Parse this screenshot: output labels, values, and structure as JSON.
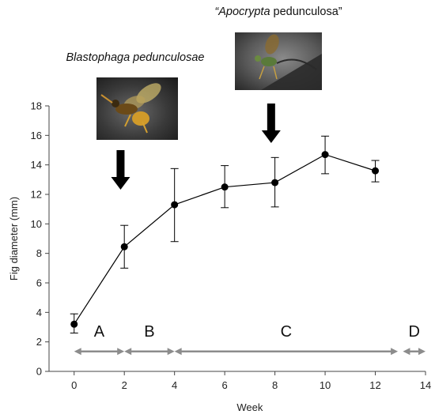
{
  "chart_data": {
    "type": "line",
    "xlabel": "Week",
    "ylabel": "Fig diameter (mm)",
    "xlim": [
      -1,
      14
    ],
    "ylim": [
      0,
      18
    ],
    "xticks": [
      0,
      2,
      4,
      6,
      8,
      10,
      12,
      14
    ],
    "yticks": [
      0,
      2,
      4,
      6,
      8,
      10,
      12,
      14,
      16,
      18
    ],
    "grid": false,
    "series": [
      {
        "points": [
          {
            "x": 0,
            "y": 3.2,
            "low": 2.6,
            "high": 3.9
          },
          {
            "x": 2,
            "y": 8.45,
            "low": 7.0,
            "high": 9.9
          },
          {
            "x": 4,
            "y": 11.3,
            "low": 8.8,
            "high": 13.75
          },
          {
            "x": 6,
            "y": 12.5,
            "low": 11.1,
            "high": 13.95
          },
          {
            "x": 8,
            "y": 12.8,
            "low": 11.15,
            "high": 14.5
          },
          {
            "x": 10,
            "y": 14.7,
            "low": 13.4,
            "high": 15.95
          },
          {
            "x": 12,
            "y": 13.6,
            "low": 12.85,
            "high": 14.3
          }
        ]
      }
    ],
    "phases": [
      {
        "label": "A",
        "start": 0,
        "end": 2
      },
      {
        "label": "B",
        "start": 2,
        "end": 4
      },
      {
        "label": "C",
        "start": 4,
        "end": 12.9
      },
      {
        "label": "D",
        "start": 13.1,
        "end": 14
      }
    ],
    "annotations": [
      {
        "name": "blastophaga",
        "text_italic": "Blastophaga pedunculosae",
        "text_rest": "",
        "arrow_x": 1.85
      },
      {
        "name": "apocrypta",
        "text_italic": "“Apocrypta",
        "text_rest": " pedunculosa”",
        "arrow_x": 7.85
      }
    ],
    "colors": {
      "line": "#000000",
      "phase_arrow": "#8c8c8c"
    }
  }
}
